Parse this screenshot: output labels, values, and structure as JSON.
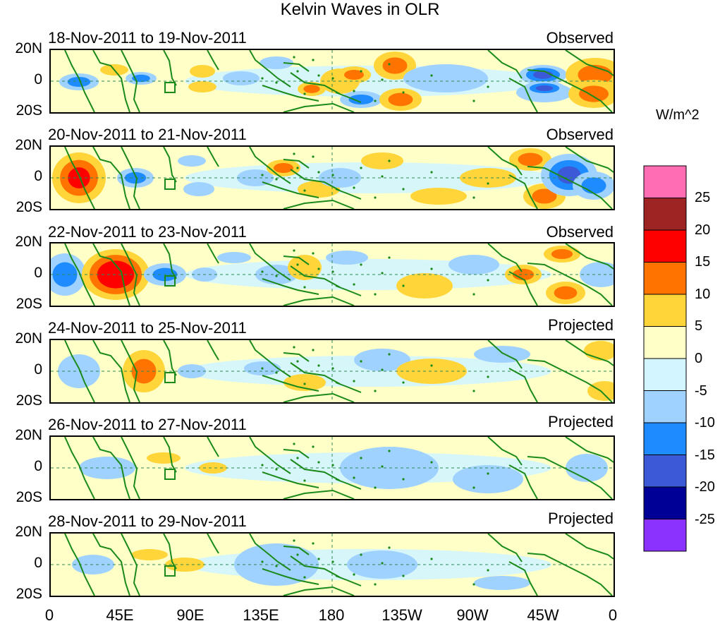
{
  "title": "Kelvin Waves in OLR",
  "panels": [
    {
      "date_range": "18-Nov-2011 to 19-Nov-2011",
      "status": "Observed"
    },
    {
      "date_range": "20-Nov-2011 to 21-Nov-2011",
      "status": "Observed"
    },
    {
      "date_range": "22-Nov-2011 to 23-Nov-2011",
      "status": "Observed"
    },
    {
      "date_range": "24-Nov-2011 to 25-Nov-2011",
      "status": "Projected"
    },
    {
      "date_range": "26-Nov-2011 to 27-Nov-2011",
      "status": "Projected"
    },
    {
      "date_range": "28-Nov-2011 to 29-Nov-2011",
      "status": "Projected"
    }
  ],
  "y_ticks": [
    "20N",
    "0",
    "20S"
  ],
  "x_ticks": [
    "0",
    "45E",
    "90E",
    "135E",
    "180",
    "135W",
    "90W",
    "45W",
    "0"
  ],
  "colorbar": {
    "units": "W/m^2",
    "labels": [
      "25",
      "20",
      "15",
      "10",
      "5",
      "0",
      "-5",
      "-10",
      "-15",
      "-20",
      "-25"
    ],
    "colors": [
      "#ff6eb4",
      "#9e2323",
      "#ff0000",
      "#ff7300",
      "#ffd53a",
      "#ffffc8",
      "#d2f5ff",
      "#a0d2ff",
      "#1e8cff",
      "#3c5ad7",
      "#000096",
      "#8c32ff"
    ]
  },
  "colors": {
    "coast": "#1a8a1a",
    "grid": "#2e8b57"
  }
}
